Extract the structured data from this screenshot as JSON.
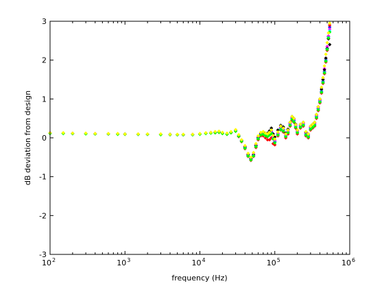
{
  "chart_data": {
    "type": "scatter",
    "title": "",
    "xlabel": "frequency (Hz)",
    "ylabel": "dB deviation from design",
    "xscale": "log",
    "xlim": [
      100,
      1000000
    ],
    "ylim": [
      -3,
      3
    ],
    "grid": false,
    "legend": "none",
    "x_ticks": [
      {
        "base": "10",
        "exp": "2"
      },
      {
        "base": "10",
        "exp": "3"
      },
      {
        "base": "10",
        "exp": "4"
      },
      {
        "base": "10",
        "exp": "5"
      },
      {
        "base": "10",
        "exp": "6"
      }
    ],
    "y_ticks": [
      "-3",
      "-2",
      "-1",
      "0",
      "1",
      "2",
      "3"
    ],
    "x": [
      100,
      150,
      200,
      300,
      400,
      600,
      800,
      1000,
      1500,
      2000,
      3000,
      4000,
      5000,
      6000,
      8000,
      10000,
      12000,
      14000,
      16000,
      18000,
      20000,
      23000,
      26000,
      30000,
      33000,
      36000,
      40000,
      44000,
      48000,
      52000,
      56000,
      60000,
      65000,
      70000,
      75000,
      80000,
      85000,
      90000,
      95000,
      100000,
      110000,
      120000,
      130000,
      140000,
      150000,
      160000,
      170000,
      180000,
      190000,
      200000,
      220000,
      240000,
      260000,
      280000,
      300000,
      320000,
      340000,
      360000,
      380000,
      400000,
      420000,
      440000,
      460000,
      480000,
      500000,
      520000,
      540000
    ],
    "series": [
      {
        "color": "#0000ff",
        "values": [
          0.12,
          0.12,
          0.11,
          0.11,
          0.1,
          0.1,
          0.1,
          0.1,
          0.09,
          0.09,
          0.09,
          0.09,
          0.08,
          0.08,
          0.08,
          0.1,
          0.12,
          0.13,
          0.14,
          0.15,
          0.12,
          0.1,
          0.14,
          0.18,
          0.05,
          -0.08,
          -0.25,
          -0.45,
          -0.55,
          -0.45,
          -0.2,
          0.0,
          0.1,
          0.12,
          0.08,
          0.05,
          0.1,
          0.15,
          0.0,
          -0.1,
          0.1,
          0.25,
          0.2,
          0.05,
          0.15,
          0.35,
          0.5,
          0.45,
          0.3,
          0.15,
          0.3,
          0.35,
          0.1,
          0.05,
          0.25,
          0.3,
          0.35,
          0.55,
          0.75,
          0.95,
          1.2,
          1.45,
          1.7,
          2.0,
          2.3,
          2.6,
          2.85
        ]
      },
      {
        "color": "#ff0000",
        "values": [
          0.12,
          0.12,
          0.11,
          0.11,
          0.1,
          0.1,
          0.1,
          0.09,
          0.09,
          0.09,
          0.09,
          0.08,
          0.08,
          0.08,
          0.08,
          0.1,
          0.12,
          0.13,
          0.13,
          0.14,
          0.12,
          0.09,
          0.13,
          0.17,
          0.03,
          -0.1,
          -0.28,
          -0.48,
          -0.58,
          -0.48,
          -0.25,
          -0.05,
          0.05,
          0.05,
          0.0,
          -0.05,
          -0.05,
          0.0,
          -0.15,
          -0.18,
          0.05,
          0.2,
          0.15,
          0.0,
          0.1,
          0.3,
          0.45,
          0.4,
          0.25,
          0.1,
          0.25,
          0.3,
          0.05,
          0.0,
          0.2,
          0.25,
          0.3,
          0.5,
          0.7,
          0.9,
          1.15,
          1.4,
          1.65,
          1.95,
          2.25,
          2.55,
          2.9
        ]
      },
      {
        "color": "#ff00ff",
        "values": [
          0.13,
          0.12,
          0.12,
          0.11,
          0.11,
          0.1,
          0.1,
          0.1,
          0.09,
          0.09,
          0.09,
          0.09,
          0.08,
          0.08,
          0.09,
          0.1,
          0.12,
          0.14,
          0.15,
          0.16,
          0.13,
          0.1,
          0.15,
          0.2,
          0.06,
          -0.06,
          -0.22,
          -0.42,
          -0.52,
          -0.42,
          -0.18,
          0.02,
          0.12,
          0.14,
          0.1,
          0.08,
          0.12,
          0.18,
          0.03,
          -0.06,
          0.12,
          0.28,
          0.22,
          0.08,
          0.18,
          0.38,
          0.52,
          0.48,
          0.32,
          0.18,
          0.33,
          0.38,
          0.13,
          0.08,
          0.28,
          0.33,
          0.38,
          0.58,
          0.78,
          0.98,
          1.25,
          1.5,
          1.78,
          2.05,
          2.35,
          2.62,
          2.8
        ]
      },
      {
        "color": "#000000",
        "values": [
          0.12,
          0.12,
          0.11,
          0.11,
          0.1,
          0.1,
          0.1,
          0.1,
          0.09,
          0.09,
          0.09,
          0.09,
          0.08,
          0.08,
          0.08,
          0.1,
          0.12,
          0.13,
          0.14,
          0.15,
          0.12,
          0.1,
          0.14,
          0.18,
          0.05,
          -0.07,
          -0.24,
          -0.44,
          -0.54,
          -0.44,
          -0.2,
          0.0,
          0.1,
          0.15,
          0.12,
          0.12,
          0.18,
          0.25,
          0.1,
          0.02,
          0.2,
          0.32,
          0.28,
          0.12,
          0.22,
          0.4,
          0.55,
          0.5,
          0.35,
          0.2,
          0.35,
          0.4,
          0.15,
          0.1,
          0.3,
          0.35,
          0.4,
          0.6,
          0.8,
          1.0,
          1.25,
          1.5,
          1.75,
          2.05,
          2.3,
          2.55,
          2.4
        ]
      },
      {
        "color": "#00ffff",
        "values": [
          0.12,
          0.12,
          0.11,
          0.11,
          0.1,
          0.1,
          0.1,
          0.1,
          0.09,
          0.09,
          0.09,
          0.09,
          0.08,
          0.08,
          0.08,
          0.1,
          0.12,
          0.13,
          0.14,
          0.15,
          0.12,
          0.1,
          0.14,
          0.18,
          0.05,
          -0.08,
          -0.26,
          -0.46,
          -0.56,
          -0.46,
          -0.22,
          -0.02,
          0.08,
          0.1,
          0.06,
          0.04,
          0.08,
          0.12,
          -0.02,
          -0.12,
          0.08,
          0.22,
          0.18,
          0.04,
          0.14,
          0.33,
          0.48,
          0.42,
          0.28,
          0.14,
          0.28,
          0.33,
          0.08,
          0.03,
          0.23,
          0.28,
          0.33,
          0.53,
          0.73,
          0.93,
          1.18,
          1.43,
          1.68,
          1.98,
          2.28,
          2.58,
          2.75
        ]
      },
      {
        "color": "#00ff00",
        "values": [
          0.11,
          0.11,
          0.11,
          0.1,
          0.1,
          0.1,
          0.09,
          0.09,
          0.09,
          0.09,
          0.08,
          0.08,
          0.08,
          0.08,
          0.08,
          0.09,
          0.11,
          0.12,
          0.13,
          0.14,
          0.11,
          0.09,
          0.13,
          0.17,
          0.04,
          -0.09,
          -0.27,
          -0.47,
          -0.57,
          -0.47,
          -0.23,
          -0.03,
          0.07,
          0.09,
          0.05,
          0.03,
          0.07,
          0.11,
          -0.03,
          -0.13,
          0.07,
          0.21,
          0.17,
          0.03,
          0.13,
          0.32,
          0.47,
          0.41,
          0.27,
          0.13,
          0.27,
          0.32,
          0.07,
          0.02,
          0.22,
          0.27,
          0.32,
          0.52,
          0.72,
          0.92,
          1.17,
          1.42,
          1.67,
          1.97,
          2.27,
          2.57,
          2.72
        ]
      },
      {
        "color": "#ffff00",
        "values": [
          0.13,
          0.13,
          0.12,
          0.12,
          0.11,
          0.11,
          0.11,
          0.1,
          0.1,
          0.1,
          0.1,
          0.09,
          0.09,
          0.09,
          0.09,
          0.11,
          0.13,
          0.14,
          0.16,
          0.17,
          0.14,
          0.12,
          0.16,
          0.21,
          0.08,
          -0.05,
          -0.2,
          -0.4,
          -0.5,
          -0.38,
          -0.15,
          0.05,
          0.14,
          0.16,
          0.12,
          0.1,
          0.14,
          0.2,
          0.06,
          -0.03,
          0.15,
          0.3,
          0.25,
          0.1,
          0.2,
          0.4,
          0.55,
          0.5,
          0.34,
          0.2,
          0.35,
          0.4,
          0.16,
          0.1,
          0.3,
          0.35,
          0.4,
          0.6,
          0.8,
          1.0,
          1.3,
          1.55,
          1.85,
          2.15,
          2.45,
          2.7,
          2.95
        ]
      }
    ]
  }
}
